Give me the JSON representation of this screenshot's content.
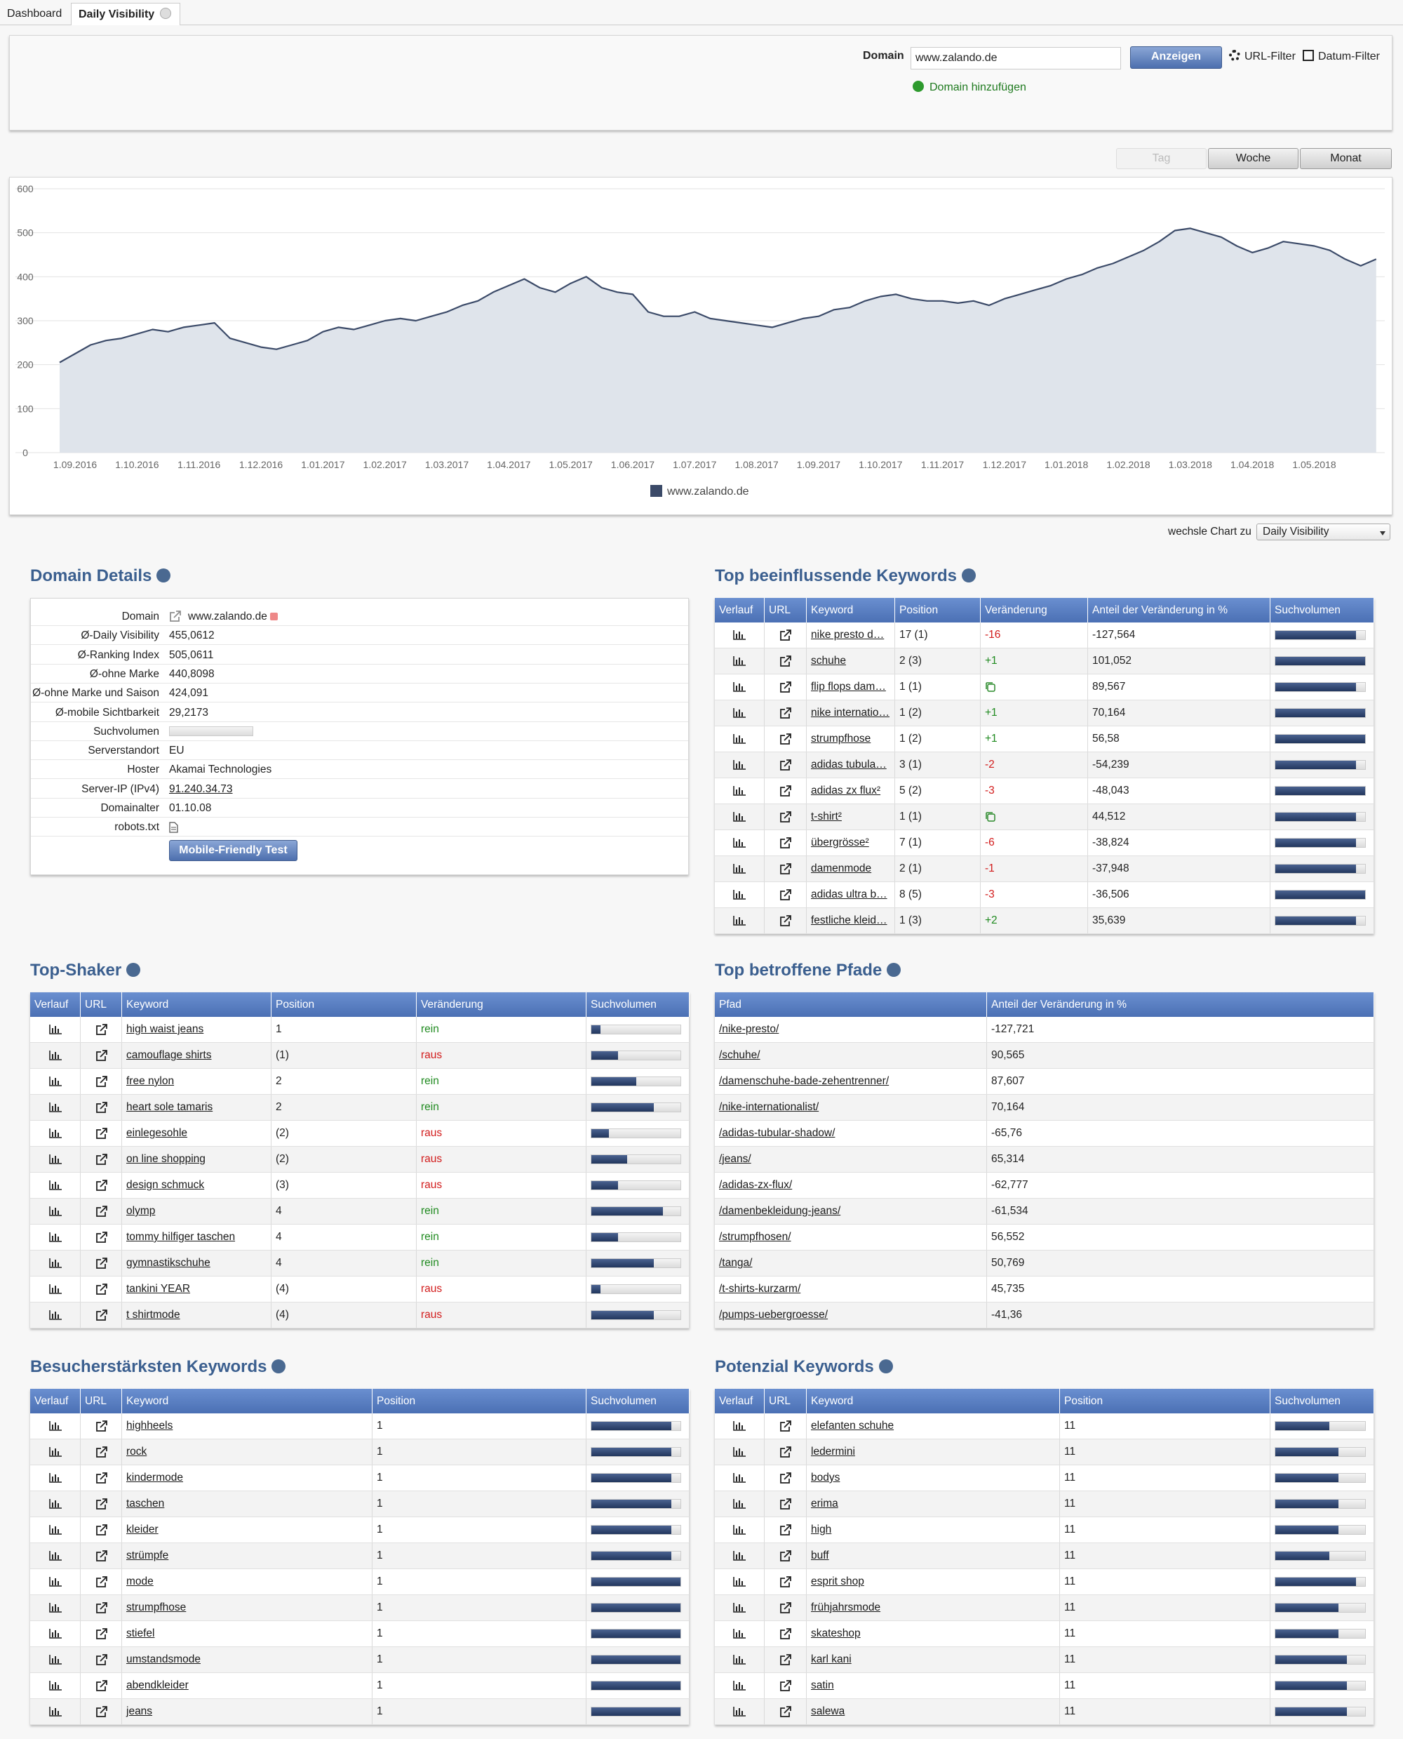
{
  "tabs": [
    "Dashboard",
    "Daily Visibility"
  ],
  "filter": {
    "label": "Domain",
    "value": "www.zalando.de",
    "submit": "Anzeigen",
    "url_filter": "URL-Filter",
    "date_filter": "Datum-Filter",
    "add_domain": "Domain hinzufügen"
  },
  "periods": [
    "Tag",
    "Woche",
    "Monat"
  ],
  "chart_data": {
    "type": "area",
    "categories": [
      null,
      "1.09.2016",
      null,
      null,
      null,
      "1.10.2016",
      null,
      null,
      null,
      "1.11.2016",
      null,
      null,
      null,
      "1.12.2016",
      null,
      null,
      null,
      "1.01.2017",
      null,
      null,
      null,
      "1.02.2017",
      null,
      null,
      null,
      "1.03.2017",
      null,
      null,
      null,
      "1.04.2017",
      null,
      null,
      null,
      "1.05.2017",
      null,
      null,
      null,
      "1.06.2017",
      null,
      null,
      null,
      "1.07.2017",
      null,
      null,
      null,
      "1.08.2017",
      null,
      null,
      null,
      "1.09.2017",
      null,
      null,
      null,
      "1.10.2017",
      null,
      null,
      null,
      "1.11.2017",
      null,
      null,
      null,
      "1.12.2017",
      null,
      null,
      null,
      "1.01.2018",
      null,
      null,
      null,
      "1.02.2018",
      null,
      null,
      null,
      "1.03.2018",
      null,
      null,
      null,
      "1.04.2018",
      null,
      null,
      null,
      "1.05.2018",
      null,
      null,
      null,
      null
    ],
    "series": [
      {
        "name": "www.zalando.de",
        "color": "#3b4a68",
        "values": [
          205,
          225,
          245,
          255,
          260,
          270,
          280,
          275,
          285,
          290,
          295,
          260,
          250,
          240,
          235,
          245,
          255,
          275,
          285,
          280,
          290,
          300,
          305,
          300,
          310,
          320,
          335,
          345,
          365,
          380,
          395,
          375,
          365,
          385,
          400,
          375,
          365,
          360,
          320,
          310,
          310,
          320,
          305,
          300,
          295,
          290,
          285,
          295,
          305,
          310,
          325,
          330,
          345,
          355,
          360,
          350,
          345,
          345,
          340,
          345,
          335,
          350,
          360,
          370,
          380,
          395,
          405,
          420,
          430,
          445,
          460,
          480,
          505,
          510,
          500,
          490,
          470,
          455,
          465,
          480,
          475,
          470,
          460,
          440,
          425,
          440
        ]
      }
    ],
    "ylim": [
      0,
      600
    ],
    "yticks": [
      0,
      100,
      200,
      300,
      400,
      500,
      600
    ],
    "grid": true,
    "legend": "bottom"
  },
  "chart_switch": {
    "label": "wechsle Chart zu",
    "value": "Daily Visibility"
  },
  "domain_details": {
    "title": "Domain Details",
    "rows": [
      [
        "Domain",
        "www.zalando.de"
      ],
      [
        "Ø-Daily Visibility",
        "455,0612"
      ],
      [
        "Ø-Ranking Index",
        "505,0611"
      ],
      [
        "Ø-ohne Marke",
        "440,8098"
      ],
      [
        "Ø-ohne Marke und Saison",
        "424,091"
      ],
      [
        "Ø-mobile Sichtbarkeit",
        "29,2173"
      ],
      [
        "Suchvolumen",
        0
      ],
      [
        "Serverstandort",
        "EU"
      ],
      [
        "Hoster",
        "Akamai Technologies"
      ],
      [
        "Server-IP (IPv4)",
        "91.240.34.73"
      ],
      [
        "Domainalter",
        "01.10.08"
      ],
      [
        "robots.txt",
        null
      ]
    ],
    "button": "Mobile-Friendly Test"
  },
  "top_keywords": {
    "title": "Top beeinflussende Keywords",
    "columns": [
      "Verlauf",
      "URL",
      "Keyword",
      "Position",
      "Veränderung",
      "Anteil der Veränderung in %",
      "Suchvolumen"
    ],
    "rows": [
      [
        "nike presto d…",
        "17 (1)",
        "-16",
        "-127,564",
        90
      ],
      [
        "schuhe",
        "2 (3)",
        "+1",
        "101,052",
        100
      ],
      [
        "flip flops dam…",
        "1 (1)",
        null,
        "89,567",
        90
      ],
      [
        "nike internatio…",
        "1 (2)",
        "+1",
        "70,164",
        100
      ],
      [
        "strumpfhose",
        "1 (2)",
        "+1",
        "56,58",
        100
      ],
      [
        "adidas tubula…",
        "3 (1)",
        "-2",
        "-54,239",
        90
      ],
      [
        "adidas zx flux²",
        "5 (2)",
        "-3",
        "-48,043",
        100
      ],
      [
        "t-shirt²",
        "1 (1)",
        null,
        "44,512",
        90
      ],
      [
        "übergrösse²",
        "7 (1)",
        "-6",
        "-38,824",
        90
      ],
      [
        "damenmode",
        "2 (1)",
        "-1",
        "-37,948",
        90
      ],
      [
        "adidas ultra b…",
        "8 (5)",
        "-3",
        "-36,506",
        100
      ],
      [
        "festliche kleid…",
        "1 (3)",
        "+2",
        "35,639",
        90
      ]
    ]
  },
  "top_shaker": {
    "title": "Top-Shaker",
    "columns": [
      "Verlauf",
      "URL",
      "Keyword",
      "Position",
      "Veränderung",
      "Suchvolumen"
    ],
    "rows": [
      [
        "high waist jeans",
        "1",
        "rein",
        10
      ],
      [
        "camouflage shirts",
        "(1)",
        "raus",
        30
      ],
      [
        "free nylon",
        "2",
        "rein",
        50
      ],
      [
        "heart sole tamaris",
        "2",
        "rein",
        70
      ],
      [
        "einlegesohle",
        "(2)",
        "raus",
        20
      ],
      [
        "on line shopping",
        "(2)",
        "raus",
        40
      ],
      [
        "design schmuck",
        "(3)",
        "raus",
        30
      ],
      [
        "olymp",
        "4",
        "rein",
        80
      ],
      [
        "tommy hilfiger taschen",
        "4",
        "rein",
        30
      ],
      [
        "gymnastikschuhe",
        "4",
        "rein",
        70
      ],
      [
        "tankini YEAR",
        "(4)",
        "raus",
        10
      ],
      [
        "t shirtmode",
        "(4)",
        "raus",
        70
      ]
    ]
  },
  "top_paths": {
    "title": "Top betroffene Pfade",
    "columns": [
      "Pfad",
      "Anteil der Veränderung in %"
    ],
    "rows": [
      [
        "/nike-presto/",
        "-127,721"
      ],
      [
        "/schuhe/",
        "90,565"
      ],
      [
        "/damenschuhe-bade-zehentrenner/",
        "87,607"
      ],
      [
        "/nike-internationalist/",
        "70,164"
      ],
      [
        "/adidas-tubular-shadow/",
        "-65,76"
      ],
      [
        "/jeans/",
        "65,314"
      ],
      [
        "/adidas-zx-flux/",
        "-62,777"
      ],
      [
        "/damenbekleidung-jeans/",
        "-61,534"
      ],
      [
        "/strumpfhosen/",
        "56,552"
      ],
      [
        "/tanga/",
        "50,769"
      ],
      [
        "/t-shirts-kurzarm/",
        "45,735"
      ],
      [
        "/pumps-uebergroesse/",
        "-41,36"
      ]
    ]
  },
  "visitor_keywords": {
    "title": "Besucherstärksten Keywords",
    "columns": [
      "Verlauf",
      "URL",
      "Keyword",
      "Position",
      "Suchvolumen"
    ],
    "rows": [
      [
        "highheels",
        "1",
        90
      ],
      [
        "rock",
        "1",
        90
      ],
      [
        "kindermode",
        "1",
        90
      ],
      [
        "taschen",
        "1",
        90
      ],
      [
        "kleider",
        "1",
        90
      ],
      [
        "strümpfe",
        "1",
        90
      ],
      [
        "mode",
        "1",
        100
      ],
      [
        "strumpfhose",
        "1",
        100
      ],
      [
        "stiefel",
        "1",
        100
      ],
      [
        "umstandsmode",
        "1",
        100
      ],
      [
        "abendkleider",
        "1",
        100
      ],
      [
        "jeans",
        "1",
        100
      ]
    ]
  },
  "potential_keywords": {
    "title": "Potenzial Keywords",
    "columns": [
      "Verlauf",
      "URL",
      "Keyword",
      "Position",
      "Suchvolumen"
    ],
    "rows": [
      [
        "elefanten schuhe",
        "11",
        60
      ],
      [
        "ledermini",
        "11",
        70
      ],
      [
        "bodys",
        "11",
        70
      ],
      [
        "erima",
        "11",
        70
      ],
      [
        "high",
        "11",
        70
      ],
      [
        "buff",
        "11",
        60
      ],
      [
        "esprit shop",
        "11",
        90
      ],
      [
        "frühjahrsmode",
        "11",
        70
      ],
      [
        "skateshop",
        "11",
        70
      ],
      [
        "karl kani",
        "11",
        80
      ],
      [
        "satin",
        "11",
        80
      ],
      [
        "salewa",
        "11",
        80
      ]
    ]
  }
}
